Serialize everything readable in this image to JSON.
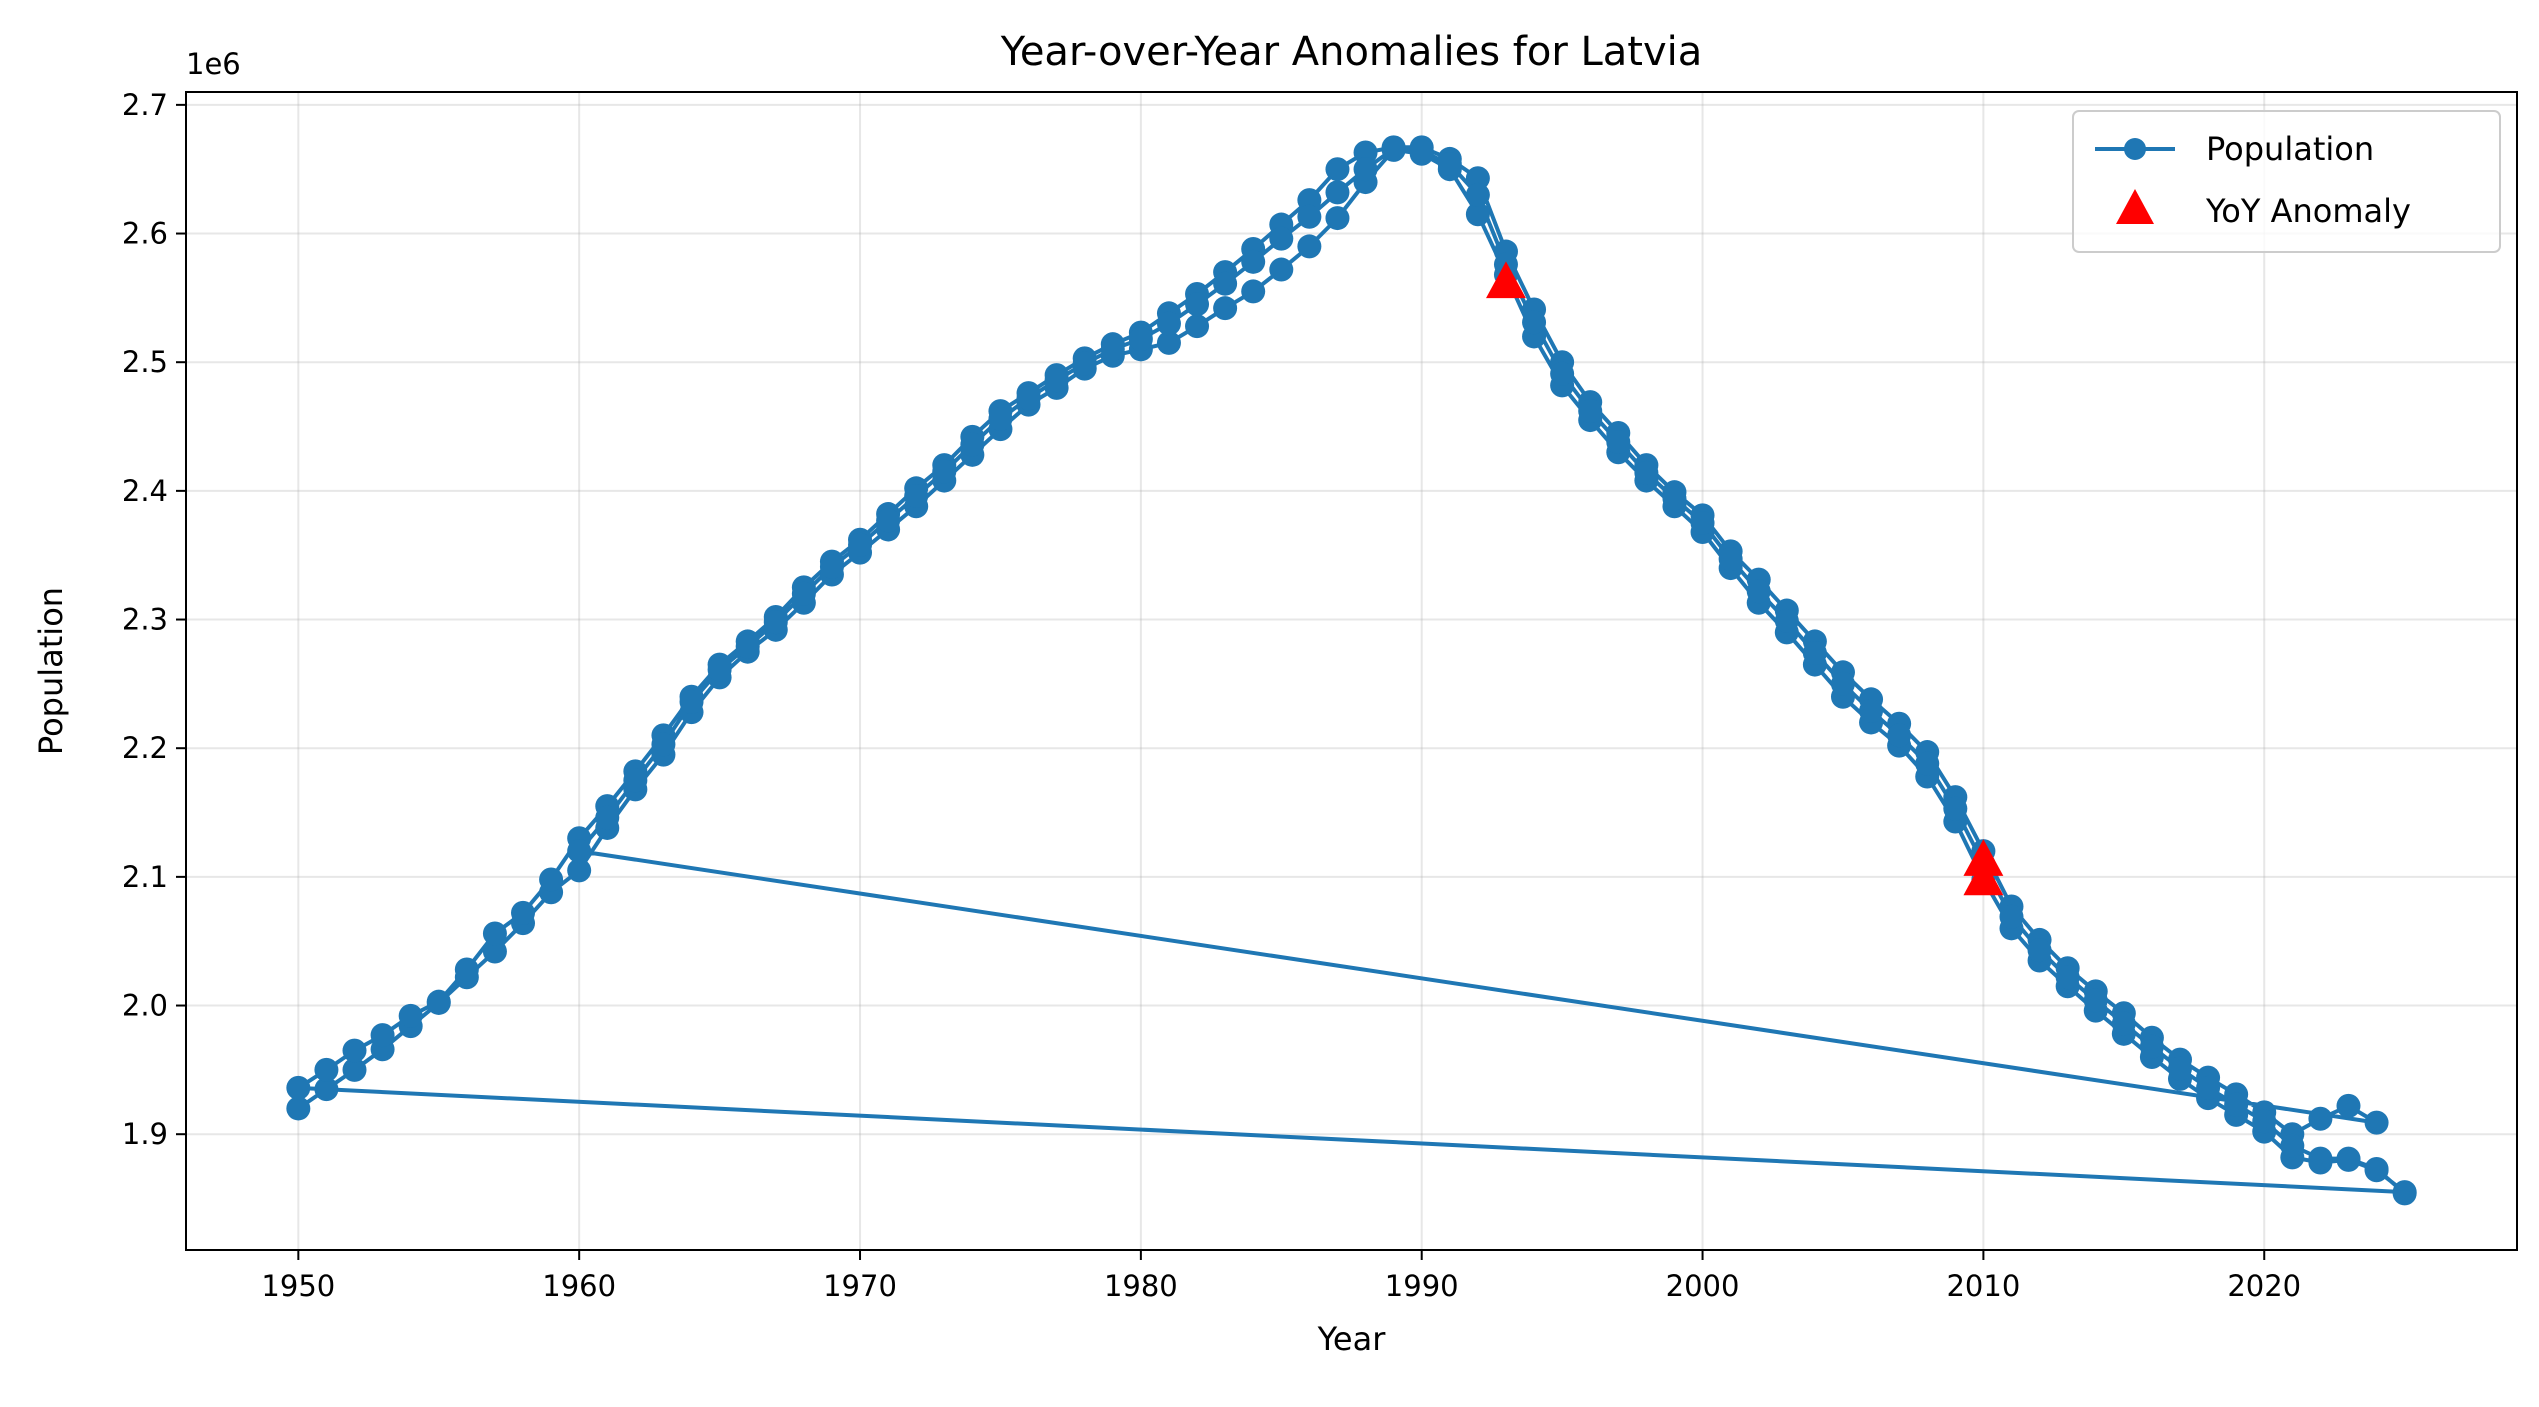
{
  "chart_data": {
    "type": "line",
    "title": "Year-over-Year Anomalies for Latvia",
    "xlabel": "Year",
    "ylabel": "Population",
    "y_offset_text": "1e6",
    "xlim": [
      1946,
      2029
    ],
    "ylim": [
      1810000,
      2710000
    ],
    "xticks": [
      1950,
      1960,
      1970,
      1980,
      1990,
      2000,
      2010,
      2020
    ],
    "yticks": [
      1900000,
      2000000,
      2100000,
      2200000,
      2300000,
      2400000,
      2500000,
      2600000,
      2700000
    ],
    "ytick_labels": [
      "1.9",
      "2.0",
      "2.1",
      "2.2",
      "2.3",
      "2.4",
      "2.5",
      "2.6",
      "2.7"
    ],
    "grid": true,
    "legend_position": "top-right",
    "colors": {
      "line": "#1f77b4",
      "anomaly": "#ff0000"
    },
    "series": [
      {
        "name": "Population",
        "style": "line-with-circle-markers",
        "color": "#1f77b4",
        "points": [
          [
            1950,
            1920000
          ],
          [
            1951,
            1935000
          ],
          [
            1952,
            1950000
          ],
          [
            1953,
            1966000
          ],
          [
            1954,
            1984000
          ],
          [
            1955,
            2002000
          ],
          [
            1956,
            2022000
          ],
          [
            1957,
            2042000
          ],
          [
            1958,
            2064000
          ],
          [
            1959,
            2088000
          ],
          [
            1960,
            2105000
          ],
          [
            1961,
            2138000
          ],
          [
            1962,
            2168000
          ],
          [
            1963,
            2195000
          ],
          [
            1964,
            2228000
          ],
          [
            1965,
            2255000
          ],
          [
            1966,
            2275000
          ],
          [
            1967,
            2292000
          ],
          [
            1968,
            2313000
          ],
          [
            1969,
            2335000
          ],
          [
            1970,
            2352000
          ],
          [
            1971,
            2370000
          ],
          [
            1972,
            2388000
          ],
          [
            1973,
            2408000
          ],
          [
            1974,
            2428000
          ],
          [
            1975,
            2448000
          ],
          [
            1976,
            2467000
          ],
          [
            1977,
            2480000
          ],
          [
            1978,
            2495000
          ],
          [
            1979,
            2505000
          ],
          [
            1980,
            2510000
          ],
          [
            1981,
            2515000
          ],
          [
            1982,
            2528000
          ],
          [
            1983,
            2542000
          ],
          [
            1984,
            2555000
          ],
          [
            1985,
            2572000
          ],
          [
            1986,
            2590000
          ],
          [
            1987,
            2612000
          ],
          [
            1988,
            2640000
          ],
          [
            1989,
            2665000
          ],
          [
            1990,
            2662000
          ],
          [
            1991,
            2650000
          ],
          [
            1992,
            2615000
          ],
          [
            1993,
            2568000
          ],
          [
            1994,
            2520000
          ],
          [
            1995,
            2482000
          ],
          [
            1996,
            2455000
          ],
          [
            1997,
            2430000
          ],
          [
            1998,
            2408000
          ],
          [
            1999,
            2388000
          ],
          [
            2000,
            2368000
          ],
          [
            2001,
            2340000
          ],
          [
            2002,
            2313000
          ],
          [
            2003,
            2290000
          ],
          [
            2004,
            2265000
          ],
          [
            2005,
            2240000
          ],
          [
            2006,
            2220000
          ],
          [
            2007,
            2202000
          ],
          [
            2008,
            2178000
          ],
          [
            2009,
            2143000
          ],
          [
            2010,
            2098000
          ],
          [
            2011,
            2060000
          ],
          [
            2012,
            2035000
          ],
          [
            2013,
            2015000
          ],
          [
            2014,
            1996000
          ],
          [
            2015,
            1978000
          ],
          [
            2016,
            1960000
          ],
          [
            2017,
            1943000
          ],
          [
            2018,
            1928000
          ],
          [
            2019,
            1915000
          ],
          [
            2020,
            1902000
          ],
          [
            2021,
            1882000
          ],
          [
            2022,
            1878000
          ],
          [
            2023,
            1880000
          ],
          [
            2024,
            1872000
          ],
          [
            2025,
            1855000
          ],
          [
            1950,
            1936000
          ],
          [
            1951,
            1950000
          ],
          [
            1952,
            1965000
          ],
          [
            1953,
            1977000
          ],
          [
            1954,
            1992000
          ],
          [
            1955,
            2003000
          ],
          [
            1956,
            2028000
          ],
          [
            1957,
            2056000
          ],
          [
            1958,
            2072000
          ],
          [
            1959,
            2098000
          ],
          [
            1960,
            2130000
          ],
          [
            1961,
            2155000
          ],
          [
            1962,
            2182000
          ],
          [
            1963,
            2210000
          ],
          [
            1964,
            2240000
          ],
          [
            1965,
            2265000
          ],
          [
            1966,
            2283000
          ],
          [
            1967,
            2302000
          ],
          [
            1968,
            2325000
          ],
          [
            1969,
            2345000
          ],
          [
            1970,
            2362000
          ],
          [
            1971,
            2382000
          ],
          [
            1972,
            2402000
          ],
          [
            1973,
            2420000
          ],
          [
            1974,
            2442000
          ],
          [
            1975,
            2462000
          ],
          [
            1976,
            2476000
          ],
          [
            1977,
            2490000
          ],
          [
            1978,
            2503000
          ],
          [
            1979,
            2514000
          ],
          [
            1980,
            2523000
          ],
          [
            1981,
            2538000
          ],
          [
            1982,
            2553000
          ],
          [
            1983,
            2570000
          ],
          [
            1984,
            2588000
          ],
          [
            1985,
            2607000
          ],
          [
            1986,
            2626000
          ],
          [
            1987,
            2650000
          ],
          [
            1988,
            2663000
          ],
          [
            1989,
            2667000
          ],
          [
            1990,
            2667000
          ],
          [
            1991,
            2658000
          ],
          [
            1992,
            2643000
          ],
          [
            1993,
            2586000
          ],
          [
            1994,
            2541000
          ],
          [
            1995,
            2500000
          ],
          [
            1996,
            2469000
          ],
          [
            1997,
            2445000
          ],
          [
            1998,
            2420000
          ],
          [
            1999,
            2399000
          ],
          [
            2000,
            2381000
          ],
          [
            2001,
            2353000
          ],
          [
            2002,
            2331000
          ],
          [
            2003,
            2307000
          ],
          [
            2004,
            2283000
          ],
          [
            2005,
            2259000
          ],
          [
            2006,
            2238000
          ],
          [
            2007,
            2219000
          ],
          [
            2008,
            2197000
          ],
          [
            2009,
            2162000
          ],
          [
            2010,
            2120000
          ],
          [
            2011,
            2077000
          ],
          [
            2012,
            2051000
          ],
          [
            2013,
            2029000
          ],
          [
            2014,
            2011000
          ],
          [
            2015,
            1994000
          ],
          [
            2016,
            1975000
          ],
          [
            2017,
            1958000
          ],
          [
            2018,
            1944000
          ],
          [
            2019,
            1931000
          ],
          [
            2020,
            1917000
          ],
          [
            2021,
            1900000
          ],
          [
            2022,
            1912000
          ],
          [
            2023,
            1922000
          ],
          [
            2024,
            1909000
          ],
          [
            1960,
            2120000
          ],
          [
            1961,
            2146000
          ],
          [
            1962,
            2175000
          ],
          [
            1963,
            2203000
          ],
          [
            1964,
            2236000
          ],
          [
            1965,
            2261000
          ],
          [
            1966,
            2279000
          ],
          [
            1967,
            2298000
          ],
          [
            1968,
            2320000
          ],
          [
            1969,
            2341000
          ],
          [
            1970,
            2358000
          ],
          [
            1971,
            2377000
          ],
          [
            1972,
            2396000
          ],
          [
            1973,
            2415000
          ],
          [
            1974,
            2436000
          ],
          [
            1975,
            2456000
          ],
          [
            1976,
            2472000
          ],
          [
            1977,
            2486000
          ],
          [
            1978,
            2499000
          ],
          [
            1979,
            2510000
          ],
          [
            1980,
            2518000
          ],
          [
            1981,
            2530000
          ],
          [
            1982,
            2545000
          ],
          [
            1983,
            2561000
          ],
          [
            1984,
            2578000
          ],
          [
            1985,
            2596000
          ],
          [
            1986,
            2613000
          ],
          [
            1987,
            2632000
          ],
          [
            1988,
            2650000
          ],
          [
            1989,
            2666000
          ],
          [
            1990,
            2664000
          ],
          [
            1991,
            2654000
          ],
          [
            1992,
            2630000
          ],
          [
            1993,
            2576000
          ],
          [
            1994,
            2531000
          ],
          [
            1995,
            2491000
          ],
          [
            1996,
            2462000
          ],
          [
            1997,
            2438000
          ],
          [
            1998,
            2414000
          ],
          [
            1999,
            2394000
          ],
          [
            2000,
            2375000
          ],
          [
            2001,
            2347000
          ],
          [
            2002,
            2322000
          ],
          [
            2003,
            2299000
          ],
          [
            2004,
            2274000
          ],
          [
            2005,
            2250000
          ],
          [
            2006,
            2229000
          ],
          [
            2007,
            2210000
          ],
          [
            2008,
            2188000
          ],
          [
            2009,
            2153000
          ],
          [
            2010,
            2110000
          ],
          [
            2011,
            2069000
          ],
          [
            2012,
            2043000
          ],
          [
            2013,
            2022000
          ],
          [
            2014,
            2004000
          ],
          [
            2015,
            1986000
          ],
          [
            2016,
            1968000
          ],
          [
            2017,
            1951000
          ],
          [
            2018,
            1936000
          ],
          [
            2019,
            1923000
          ],
          [
            2020,
            1910000
          ],
          [
            2021,
            1891000
          ],
          [
            2022,
            1881000
          ],
          [
            2023,
            1881000
          ],
          [
            2024,
            1873000
          ],
          [
            2025,
            1854000
          ]
        ]
      },
      {
        "name": "YoY Anomaly",
        "style": "red-triangle-markers",
        "color": "#ff0000",
        "points": [
          [
            1993,
            2562000
          ],
          [
            2010,
            2098000
          ],
          [
            2010,
            2113000
          ]
        ]
      }
    ]
  }
}
